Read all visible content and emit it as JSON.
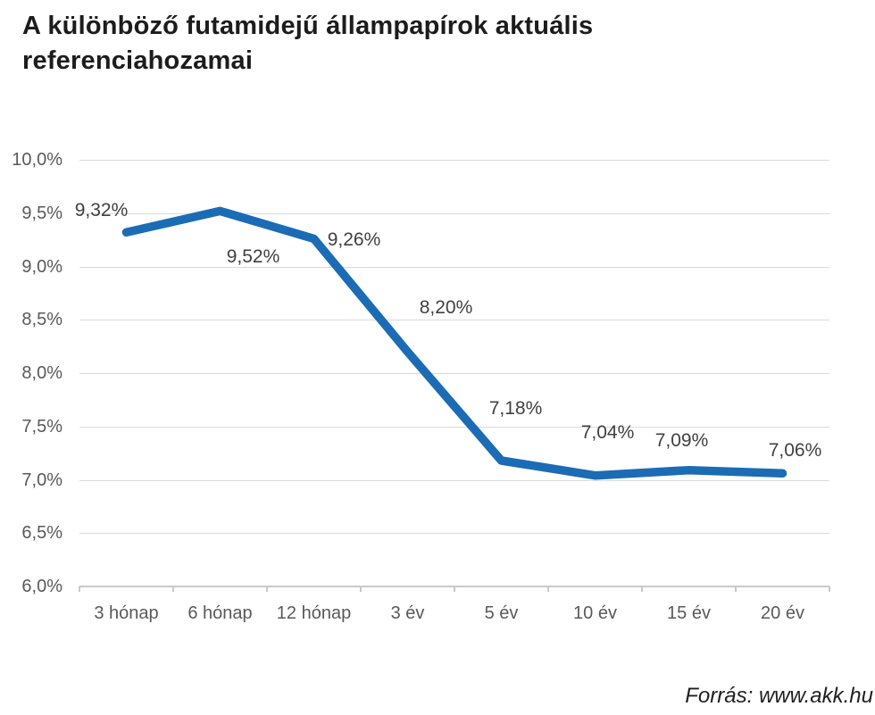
{
  "page": {
    "title": "A különböző futamidejű állampapírok aktuális referenciahozamai",
    "source": "Forrás: www.akk.hu"
  },
  "chart_data": {
    "type": "line",
    "title": "A különböző futamidejű állampapírok aktuális referenciahozamai",
    "categories": [
      "3 hónap",
      "6 hónap",
      "12 hónap",
      "3 év",
      "5 év",
      "10 év",
      "15 év",
      "20 év"
    ],
    "values": [
      9.32,
      9.52,
      9.26,
      8.2,
      7.18,
      7.04,
      7.09,
      7.06
    ],
    "point_labels": [
      "9,32%",
      "9,52%",
      "9,26%",
      "8,20%",
      "7,18%",
      "7,04%",
      "7,09%",
      "7,06%"
    ],
    "yticks": [
      {
        "value": 10.0,
        "label": "10,0%"
      },
      {
        "value": 9.5,
        "label": "9,5%"
      },
      {
        "value": 9.0,
        "label": "9,0%"
      },
      {
        "value": 8.5,
        "label": "8,5%"
      },
      {
        "value": 8.0,
        "label": "8,0%"
      },
      {
        "value": 7.5,
        "label": "7,5%"
      },
      {
        "value": 7.0,
        "label": "7,0%"
      },
      {
        "value": 6.5,
        "label": "6,5%"
      },
      {
        "value": 6.0,
        "label": "6,0%"
      }
    ],
    "ylim": [
      6.0,
      10.0
    ],
    "xlabel": "",
    "ylabel": "",
    "grid": true,
    "legend": false,
    "colors": {
      "line": "#1B6CB5",
      "gridline": "#DADADA",
      "axis": "#C9C9C9",
      "axis_labels": "#595959",
      "data_labels": "#404040"
    },
    "source": "Forrás: www.akk.hu"
  }
}
